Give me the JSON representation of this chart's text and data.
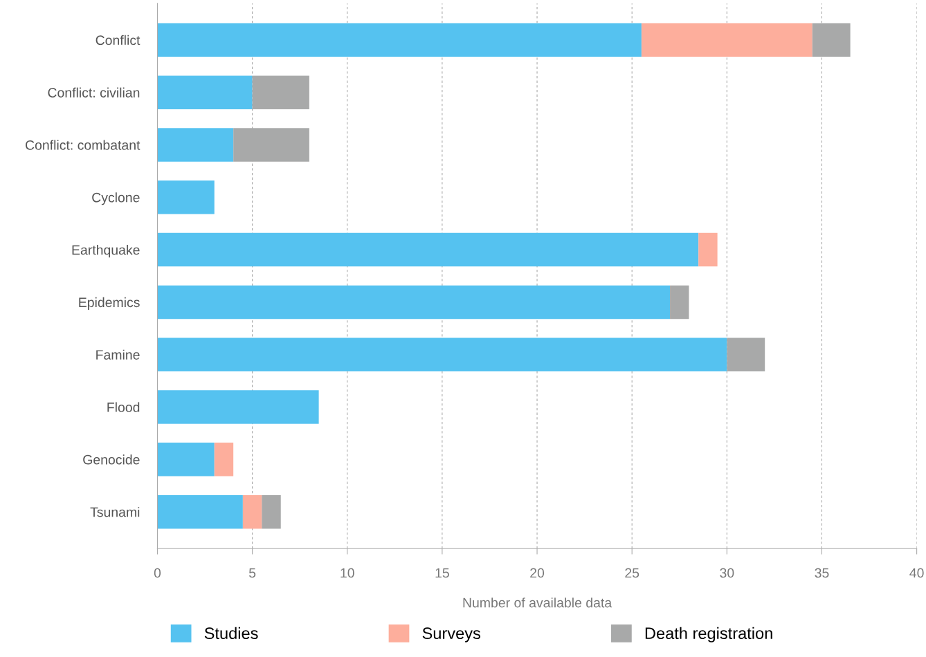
{
  "chart_data": {
    "type": "bar",
    "orientation": "horizontal",
    "stacked": true,
    "categories": [
      "Conflict",
      "Conflict: civilian",
      "Conflict: combatant",
      "Cyclone",
      "Earthquake",
      "Epidemics",
      "Famine",
      "Flood",
      "Genocide",
      "Tsunami"
    ],
    "series": [
      {
        "name": "Studies",
        "color": "#55c2f0",
        "values": [
          25.5,
          5,
          4,
          3,
          28.5,
          27,
          30,
          8.5,
          3,
          4.5
        ]
      },
      {
        "name": "Surveys",
        "color": "#fdae9c",
        "values": [
          9,
          0,
          0,
          0,
          1,
          0,
          0,
          0,
          1,
          1
        ]
      },
      {
        "name": "Death registration",
        "color": "#a8a9a9",
        "values": [
          2,
          3,
          4,
          0,
          0,
          1,
          2,
          0,
          0,
          1
        ]
      }
    ],
    "xlabel": "Number of available data",
    "xlim": [
      0,
      40
    ],
    "xticks": [
      0,
      5,
      10,
      15,
      20,
      25,
      30,
      35,
      40
    ],
    "grid": "x",
    "legend": "bottom"
  }
}
